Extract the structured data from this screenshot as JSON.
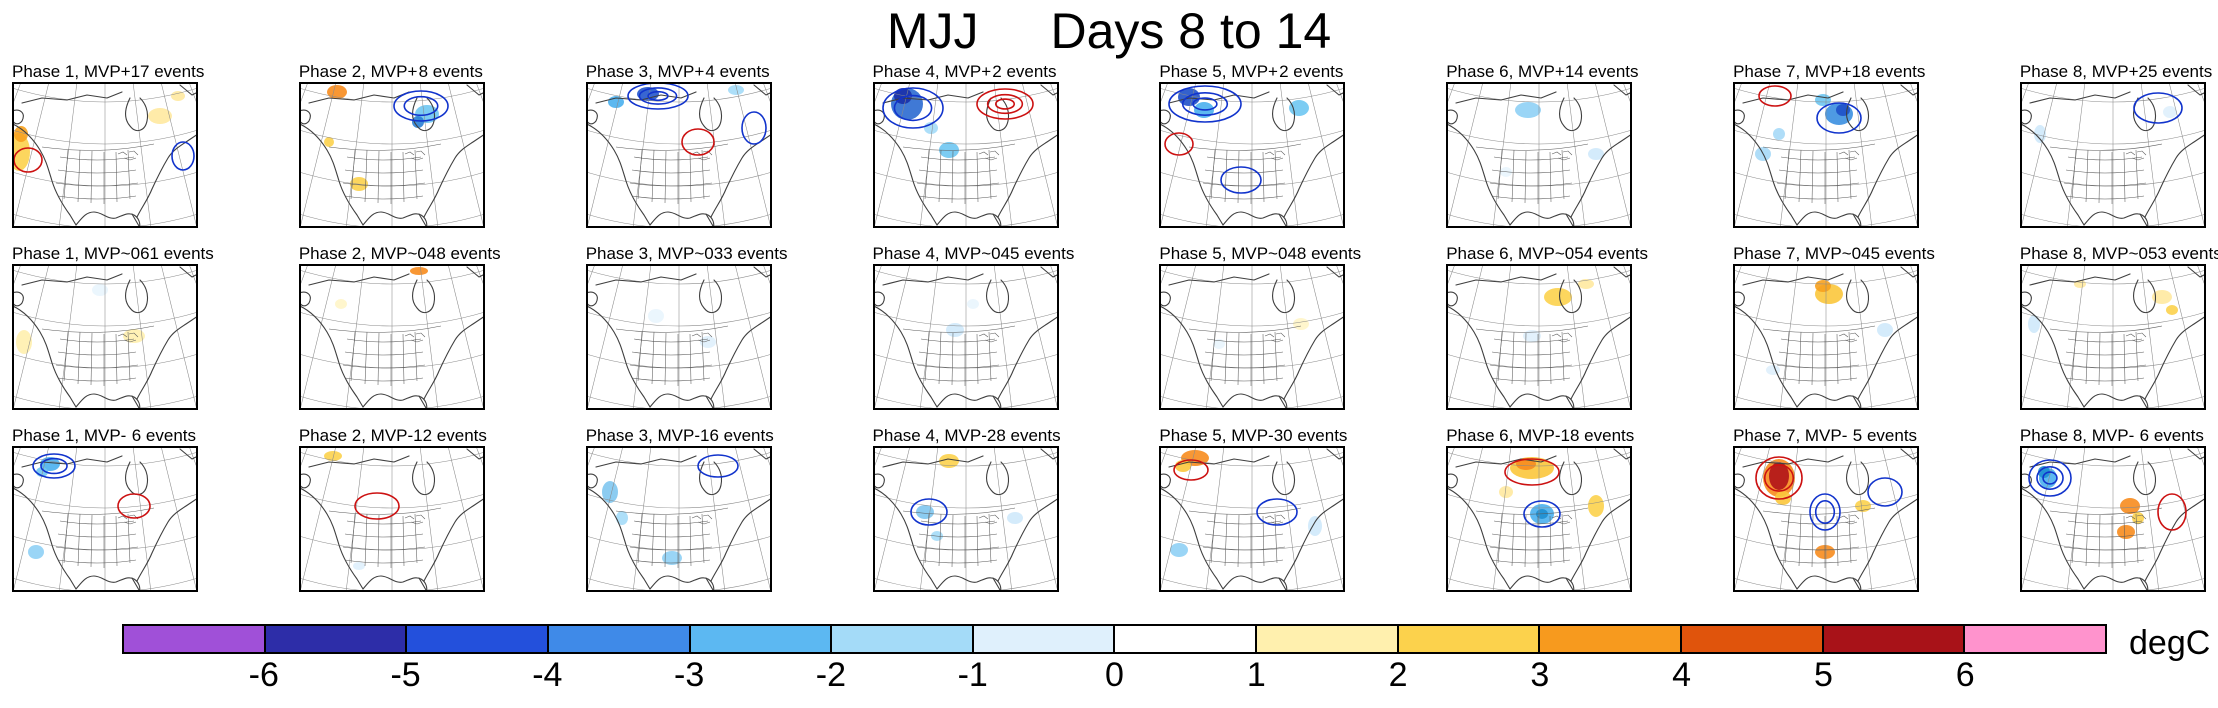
{
  "title": {
    "season": "MJJ",
    "days": "Days 8 to 14"
  },
  "colorbar": {
    "unit": "degC",
    "ticks": [
      "-6",
      "-5",
      "-4",
      "-3",
      "-2",
      "-1",
      "0",
      "1",
      "2",
      "3",
      "4",
      "5",
      "6"
    ],
    "colors": [
      "#a050d8",
      "#2d2da8",
      "#2350dc",
      "#3f8ae8",
      "#5cb8f2",
      "#a4dbf8",
      "#dff0fc",
      "#ffffff",
      "#fff0ae",
      "#fcd24c",
      "#f79a1e",
      "#e0540c",
      "#a81218",
      "#ff93cd"
    ],
    "contour_blue": "#1133cc",
    "contour_red": "#cc1111"
  },
  "chart_data": {
    "type": "heatmap",
    "title": "MJJ Days 8 to 14",
    "rows": [
      "MVP+",
      "MVP~0",
      "MVP-"
    ],
    "columns": [
      "Phase 1",
      "Phase 2",
      "Phase 3",
      "Phase 4",
      "Phase 5",
      "Phase 6",
      "Phase 7",
      "Phase 8"
    ],
    "events": [
      [
        17,
        8,
        4,
        2,
        2,
        14,
        18,
        25
      ],
      [
        61,
        48,
        33,
        45,
        48,
        54,
        45,
        53
      ],
      [
        6,
        12,
        16,
        28,
        30,
        18,
        5,
        6
      ]
    ],
    "colorbar": {
      "label": "degC",
      "ticks": [
        -6,
        -5,
        -4,
        -3,
        -2,
        -1,
        0,
        1,
        2,
        3,
        4,
        5,
        6
      ]
    },
    "content": "Composite 2-m temperature anomaly maps over North America by MJO phase (columns) and MVP regime (rows), shading in degC with blue/red anomaly contours"
  },
  "panels": [
    {
      "label": "Phase 1, MVP+",
      "events": "17 events",
      "shades": [
        [
          7,
          70,
          11,
          19,
          "#fcd24c"
        ],
        [
          9,
          52,
          7,
          8,
          "#f7a11e"
        ],
        [
          148,
          34,
          12,
          8,
          "#ffe9a0"
        ],
        [
          166,
          14,
          7,
          5,
          "#ffe9a0"
        ]
      ],
      "contours": [
        [
          16,
          78,
          14,
          12,
          "#cc1111",
          1
        ],
        [
          171,
          74,
          11,
          14,
          "#1133cc",
          1
        ]
      ]
    },
    {
      "label": "Phase 2, MVP+",
      "events": "8 events",
      "shades": [
        [
          38,
          10,
          10,
          7,
          "#f78c1e"
        ],
        [
          128,
          32,
          12,
          9,
          "#6ec6f2"
        ],
        [
          119,
          40,
          6,
          6,
          "#2a7fd4"
        ],
        [
          60,
          102,
          9,
          7,
          "#fcd24c"
        ],
        [
          30,
          60,
          5,
          5,
          "#fcd24c"
        ]
      ],
      "contours": [
        [
          122,
          24,
          27,
          15,
          "#1133cc",
          2
        ]
      ]
    },
    {
      "label": "Phase 3, MVP+",
      "events": "4 events",
      "shades": [
        [
          62,
          12,
          11,
          7,
          "#2255cc"
        ],
        [
          30,
          20,
          8,
          6,
          "#4ab0ee"
        ],
        [
          150,
          8,
          8,
          5,
          "#a4dbf8"
        ]
      ],
      "contours": [
        [
          72,
          14,
          30,
          13,
          "#1133cc",
          3
        ],
        [
          112,
          60,
          16,
          13,
          "#cc1111",
          1
        ],
        [
          168,
          46,
          12,
          16,
          "#1133cc",
          1
        ]
      ]
    },
    {
      "label": "Phase 4, MVP+",
      "events": "2 events",
      "shades": [
        [
          34,
          22,
          16,
          16,
          "#2b6ad0"
        ],
        [
          30,
          14,
          9,
          8,
          "#1a2fa8"
        ],
        [
          76,
          68,
          10,
          8,
          "#6ec6f2"
        ],
        [
          58,
          46,
          7,
          6,
          "#a4dbf8"
        ]
      ],
      "contours": [
        [
          40,
          26,
          30,
          20,
          "#1133cc",
          2
        ],
        [
          132,
          22,
          28,
          15,
          "#cc1111",
          3
        ]
      ]
    },
    {
      "label": "Phase 5, MVP+",
      "events": "2 events",
      "shades": [
        [
          30,
          15,
          11,
          9,
          "#1e50c8"
        ],
        [
          45,
          28,
          10,
          8,
          "#4ab0ee"
        ],
        [
          140,
          26,
          10,
          8,
          "#6ec6f2"
        ]
      ],
      "contours": [
        [
          46,
          22,
          36,
          18,
          "#1133cc",
          3
        ],
        [
          20,
          62,
          14,
          11,
          "#cc1111",
          1
        ],
        [
          82,
          98,
          20,
          13,
          "#1133cc",
          1
        ]
      ]
    },
    {
      "label": "Phase 6, MVP+",
      "events": "14 events",
      "shades": [
        [
          82,
          28,
          13,
          8,
          "#8fd0f5"
        ],
        [
          150,
          72,
          8,
          6,
          "#cfe9fb"
        ],
        [
          60,
          90,
          6,
          5,
          "#e9f5fd"
        ]
      ],
      "contours": []
    },
    {
      "label": "Phase 7, MVP+",
      "events": "18 events",
      "shades": [
        [
          106,
          32,
          14,
          11,
          "#3b8fe0"
        ],
        [
          110,
          28,
          7,
          6,
          "#1e50c8"
        ],
        [
          30,
          72,
          8,
          7,
          "#a6d9f7"
        ],
        [
          46,
          52,
          6,
          6,
          "#a6d9f7"
        ],
        [
          90,
          18,
          8,
          6,
          "#6ec6f2"
        ]
      ],
      "contours": [
        [
          42,
          14,
          16,
          10,
          "#cc1111",
          1
        ],
        [
          106,
          36,
          22,
          15,
          "#1133cc",
          1
        ]
      ]
    },
    {
      "label": "Phase 8, MVP+",
      "events": "25 events",
      "shades": [
        [
          20,
          52,
          6,
          9,
          "#cfe9fb"
        ],
        [
          150,
          30,
          7,
          6,
          "#dff0fc"
        ]
      ],
      "contours": [
        [
          138,
          26,
          24,
          15,
          "#1133cc",
          1
        ]
      ]
    },
    {
      "label": "Phase 1, MVP~0",
      "events": "61 events",
      "shades": [
        [
          12,
          78,
          8,
          12,
          "#fff0ae"
        ],
        [
          122,
          72,
          11,
          7,
          "#fff0ae"
        ],
        [
          88,
          26,
          8,
          6,
          "#e9f5fd"
        ]
      ],
      "contours": []
    },
    {
      "label": "Phase 2, MVP~0",
      "events": "48 events",
      "shades": [
        [
          120,
          7,
          9,
          4,
          "#f78c1e"
        ],
        [
          42,
          40,
          6,
          5,
          "#fff5c8"
        ]
      ],
      "contours": []
    },
    {
      "label": "Phase 3, MVP~0",
      "events": "33 events",
      "shades": [
        [
          70,
          52,
          8,
          7,
          "#e9f5fd"
        ],
        [
          122,
          78,
          8,
          6,
          "#dff0fc"
        ]
      ],
      "contours": []
    },
    {
      "label": "Phase 4, MVP~0",
      "events": "45 events",
      "shades": [
        [
          82,
          66,
          9,
          7,
          "#cfe9fb"
        ],
        [
          100,
          40,
          6,
          5,
          "#e9f5fd"
        ]
      ],
      "contours": []
    },
    {
      "label": "Phase 5, MVP~0",
      "events": "48 events",
      "shades": [
        [
          142,
          60,
          8,
          6,
          "#fff5c8"
        ],
        [
          60,
          80,
          6,
          5,
          "#e9f5fd"
        ]
      ],
      "contours": []
    },
    {
      "label": "Phase 6, MVP~0",
      "events": "54 events",
      "shades": [
        [
          112,
          33,
          14,
          9,
          "#fcd24c"
        ],
        [
          86,
          72,
          9,
          6,
          "#dff0fc"
        ],
        [
          140,
          20,
          8,
          5,
          "#ffe9a0"
        ]
      ],
      "contours": []
    },
    {
      "label": "Phase 7, MVP~0",
      "events": "45 events",
      "shades": [
        [
          96,
          30,
          14,
          10,
          "#fbc63c"
        ],
        [
          90,
          22,
          8,
          6,
          "#f7a11e"
        ],
        [
          152,
          66,
          8,
          7,
          "#cfe9fb"
        ],
        [
          40,
          106,
          7,
          5,
          "#dff0fc"
        ]
      ],
      "contours": []
    },
    {
      "label": "Phase 8, MVP~0",
      "events": "53 events",
      "shades": [
        [
          142,
          33,
          10,
          7,
          "#ffe9a0"
        ],
        [
          152,
          46,
          6,
          5,
          "#fcd24c"
        ],
        [
          14,
          60,
          6,
          9,
          "#cfe9fb"
        ],
        [
          60,
          20,
          6,
          4,
          "#ffe9a0"
        ]
      ],
      "contours": []
    },
    {
      "label": "Phase 1, MVP-",
      "events": "6 events",
      "shades": [
        [
          38,
          18,
          10,
          7,
          "#4ab0ee"
        ],
        [
          30,
          26,
          6,
          5,
          "#6ec6f2"
        ],
        [
          24,
          106,
          8,
          7,
          "#8fd0f5"
        ]
      ],
      "contours": [
        [
          42,
          20,
          21,
          12,
          "#1133cc",
          2
        ],
        [
          122,
          60,
          16,
          12,
          "#cc1111",
          1
        ]
      ]
    },
    {
      "label": "Phase 2, MVP-",
      "events": "12 events",
      "shades": [
        [
          34,
          10,
          9,
          5,
          "#fcd24c"
        ],
        [
          60,
          120,
          6,
          4,
          "#dff0fc"
        ]
      ],
      "contours": [
        [
          78,
          60,
          22,
          13,
          "#cc1111",
          1
        ]
      ]
    },
    {
      "label": "Phase 3, MVP-",
      "events": "16 events",
      "shades": [
        [
          24,
          46,
          8,
          11,
          "#7fc6f0"
        ],
        [
          36,
          72,
          6,
          7,
          "#a4dbf8"
        ],
        [
          86,
          112,
          10,
          7,
          "#8fd0f5"
        ]
      ],
      "contours": [
        [
          132,
          20,
          20,
          11,
          "#1133cc",
          1
        ]
      ]
    },
    {
      "label": "Phase 4, MVP-",
      "events": "28 events",
      "shades": [
        [
          76,
          15,
          10,
          7,
          "#fcd24c"
        ],
        [
          52,
          66,
          9,
          7,
          "#7fc6f0"
        ],
        [
          142,
          72,
          8,
          6,
          "#cfe9fb"
        ],
        [
          64,
          90,
          6,
          5,
          "#a4dbf8"
        ]
      ],
      "contours": [
        [
          56,
          66,
          18,
          13,
          "#1133cc",
          1
        ]
      ]
    },
    {
      "label": "Phase 5, MVP-",
      "events": "30 events",
      "shades": [
        [
          36,
          12,
          14,
          8,
          "#f78c1e"
        ],
        [
          24,
          20,
          8,
          6,
          "#fbc63c"
        ],
        [
          20,
          104,
          9,
          7,
          "#8fd0f5"
        ],
        [
          156,
          80,
          7,
          10,
          "#cfe9fb"
        ]
      ],
      "contours": [
        [
          32,
          24,
          17,
          10,
          "#cc1111",
          1
        ],
        [
          118,
          66,
          20,
          13,
          "#1133cc",
          1
        ]
      ]
    },
    {
      "label": "Phase 6, MVP-",
      "events": "18 events",
      "shades": [
        [
          86,
          22,
          22,
          11,
          "#fbc63c"
        ],
        [
          80,
          18,
          10,
          6,
          "#f78c1e"
        ],
        [
          96,
          68,
          12,
          10,
          "#4ab0ee"
        ],
        [
          96,
          68,
          6,
          5,
          "#1e8fd0"
        ],
        [
          150,
          60,
          8,
          11,
          "#fcd24c"
        ],
        [
          60,
          46,
          7,
          6,
          "#ffe9a0"
        ]
      ],
      "contours": [
        [
          86,
          26,
          27,
          13,
          "#cc1111",
          1
        ],
        [
          96,
          68,
          18,
          13,
          "#1133cc",
          1
        ]
      ]
    },
    {
      "label": "Phase 7, MVP-",
      "events": "5 events",
      "shades": [
        [
          46,
          32,
          16,
          19,
          "#f78c1e"
        ],
        [
          46,
          30,
          10,
          14,
          "#b01318"
        ],
        [
          50,
          52,
          8,
          7,
          "#fbc63c"
        ],
        [
          92,
          106,
          10,
          7,
          "#f78c1e"
        ],
        [
          130,
          60,
          8,
          6,
          "#fcd24c"
        ]
      ],
      "contours": [
        [
          46,
          32,
          23,
          21,
          "#cc1111",
          2
        ],
        [
          92,
          66,
          15,
          18,
          "#1133cc",
          2
        ],
        [
          152,
          46,
          17,
          14,
          "#1133cc",
          1
        ]
      ]
    },
    {
      "label": "Phase 8, MVP-",
      "events": "6 events",
      "shades": [
        [
          28,
          32,
          9,
          10,
          "#4ab0ee"
        ],
        [
          24,
          26,
          6,
          6,
          "#1e8fd0"
        ],
        [
          110,
          60,
          10,
          8,
          "#f78c1e"
        ],
        [
          106,
          86,
          9,
          7,
          "#f78c1e"
        ],
        [
          118,
          72,
          6,
          6,
          "#fcd24c"
        ]
      ],
      "contours": [
        [
          30,
          32,
          21,
          18,
          "#1133cc",
          3
        ],
        [
          152,
          66,
          14,
          18,
          "#cc1111",
          1
        ]
      ]
    }
  ]
}
